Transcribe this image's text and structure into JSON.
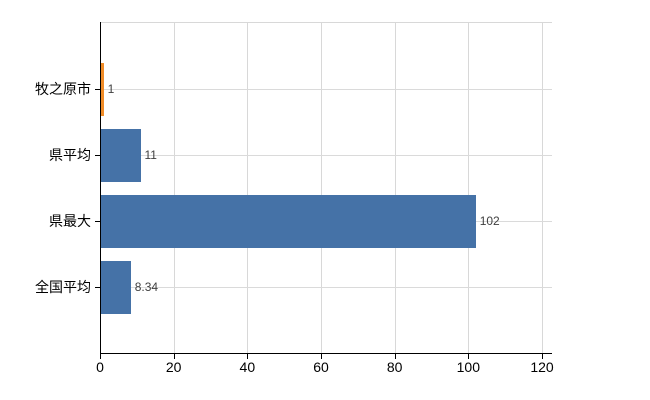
{
  "chart_data": {
    "type": "bar",
    "orientation": "horizontal",
    "title": "",
    "xlabel": "",
    "ylabel": "",
    "categories": [
      "牧之原市",
      "県平均",
      "県最大",
      "全国平均"
    ],
    "values": [
      1,
      11,
      102,
      8.34
    ],
    "value_labels": [
      "1",
      "11",
      "102",
      "8.34"
    ],
    "bar_colors": [
      "#f08c28",
      "#4572a7",
      "#4572a7",
      "#4572a7"
    ],
    "xlim": [
      0,
      120
    ],
    "x_ticks": [
      0,
      20,
      40,
      60,
      80,
      100,
      120
    ],
    "x_tick_labels": [
      "0",
      "20",
      "40",
      "60",
      "80",
      "100",
      "120"
    ],
    "grid": true,
    "legend": false,
    "colors": {
      "highlight_bar": "#f08c28",
      "default_bar": "#4572a7",
      "gridline": "#d8d8d8",
      "axis": "#000000",
      "value_text": "#404040",
      "tick_text": "#000000",
      "background": "#ffffff"
    }
  }
}
